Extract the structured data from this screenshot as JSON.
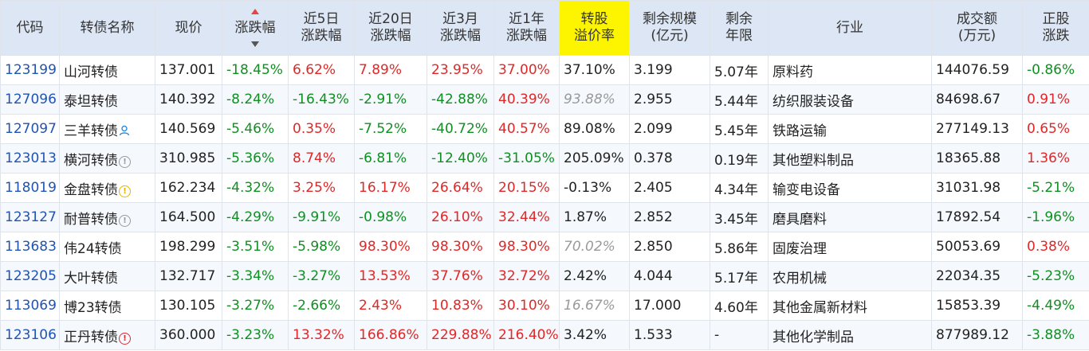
{
  "headers": [
    {
      "key": "code",
      "label": "代码"
    },
    {
      "key": "name",
      "label": "转债名称"
    },
    {
      "key": "price",
      "label": "现价"
    },
    {
      "key": "change",
      "label": "涨跌幅"
    },
    {
      "key": "change5d",
      "label": "近5日\n涨跌幅"
    },
    {
      "key": "change20d",
      "label": "近20日\n涨跌幅"
    },
    {
      "key": "change3m",
      "label": "近3月\n涨跌幅"
    },
    {
      "key": "change1y",
      "label": "近1年\n涨跌幅"
    },
    {
      "key": "premium",
      "label": "转股\n溢价率"
    },
    {
      "key": "scale",
      "label": "剩余规模\n(亿元)"
    },
    {
      "key": "years",
      "label": "剩余\n年限"
    },
    {
      "key": "industry",
      "label": "行业"
    },
    {
      "key": "turnover",
      "label": "成交额\n(万元)"
    },
    {
      "key": "stock_change",
      "label": "正股\n涨跌"
    }
  ],
  "sort": {
    "column": "change",
    "direction": "desc"
  },
  "colors": {
    "header_bg": "#dce6f4",
    "highlight": "#fdf400",
    "up": "#e12727",
    "down": "#108f22",
    "code": "#1f54b5",
    "muted": "#9a9a9a"
  },
  "rows": [
    {
      "code": "123199",
      "name": "山河转债",
      "badge": "",
      "price": "137.001",
      "change": "-18.45%",
      "change5d": "6.62%",
      "change20d": "7.89%",
      "change3m": "23.95%",
      "change1y": "37.00%",
      "premium": "37.10%",
      "premium_muted": false,
      "scale": "3.199",
      "years": "5.07年",
      "industry": "原料药",
      "turnover": "144076.59",
      "stock_change": "-0.86%"
    },
    {
      "code": "127096",
      "name": "泰坦转债",
      "badge": "",
      "price": "140.392",
      "change": "-8.24%",
      "change5d": "-16.43%",
      "change20d": "-2.91%",
      "change3m": "-42.88%",
      "change1y": "40.39%",
      "premium": "93.88%",
      "premium_muted": true,
      "scale": "2.955",
      "years": "5.44年",
      "industry": "纺织服装设备",
      "turnover": "84698.67",
      "stock_change": "0.91%"
    },
    {
      "code": "127097",
      "name": "三羊转债",
      "badge": "user-icon",
      "price": "140.569",
      "change": "-5.46%",
      "change5d": "0.35%",
      "change20d": "-7.52%",
      "change3m": "-40.72%",
      "change1y": "40.57%",
      "premium": "89.08%",
      "premium_muted": false,
      "scale": "2.099",
      "years": "5.45年",
      "industry": "铁路运输",
      "turnover": "277149.13",
      "stock_change": "0.65%"
    },
    {
      "code": "123013",
      "name": "横河转债",
      "badge": "info-icon",
      "price": "310.985",
      "change": "-5.36%",
      "change5d": "8.74%",
      "change20d": "-6.81%",
      "change3m": "-12.40%",
      "change1y": "-31.05%",
      "premium": "205.09%",
      "premium_muted": false,
      "scale": "0.378",
      "years": "0.19年",
      "industry": "其他塑料制品",
      "turnover": "18365.88",
      "stock_change": "1.36%"
    },
    {
      "code": "118019",
      "name": "金盘转债",
      "badge": "warning-icon",
      "price": "162.234",
      "change": "-4.32%",
      "change5d": "3.25%",
      "change20d": "16.17%",
      "change3m": "26.64%",
      "change1y": "20.15%",
      "premium": "-0.13%",
      "premium_muted": false,
      "scale": "2.405",
      "years": "4.34年",
      "industry": "输变电设备",
      "turnover": "31031.98",
      "stock_change": "-5.21%"
    },
    {
      "code": "123127",
      "name": "耐普转债",
      "badge": "info-icon",
      "price": "164.500",
      "change": "-4.29%",
      "change5d": "-9.91%",
      "change20d": "-0.98%",
      "change3m": "26.10%",
      "change1y": "32.44%",
      "premium": "1.87%",
      "premium_muted": false,
      "scale": "2.852",
      "years": "3.45年",
      "industry": "磨具磨料",
      "turnover": "17892.54",
      "stock_change": "-1.96%"
    },
    {
      "code": "113683",
      "name": "伟24转债",
      "badge": "",
      "price": "198.299",
      "change": "-3.51%",
      "change5d": "-5.98%",
      "change20d": "98.30%",
      "change3m": "98.30%",
      "change1y": "98.30%",
      "premium": "70.02%",
      "premium_muted": true,
      "scale": "2.850",
      "years": "5.86年",
      "industry": "固废治理",
      "turnover": "50053.69",
      "stock_change": "0.38%"
    },
    {
      "code": "123205",
      "name": "大叶转债",
      "badge": "",
      "price": "132.717",
      "change": "-3.34%",
      "change5d": "-3.27%",
      "change20d": "13.53%",
      "change3m": "37.76%",
      "change1y": "32.72%",
      "premium": "2.42%",
      "premium_muted": false,
      "scale": "4.044",
      "years": "5.17年",
      "industry": "农用机械",
      "turnover": "22034.35",
      "stock_change": "-5.23%"
    },
    {
      "code": "113069",
      "name": "博23转债",
      "badge": "",
      "price": "130.105",
      "change": "-3.27%",
      "change5d": "-2.66%",
      "change20d": "2.43%",
      "change3m": "10.83%",
      "change1y": "30.10%",
      "premium": "16.67%",
      "premium_muted": true,
      "scale": "17.000",
      "years": "4.60年",
      "industry": "其他金属新材料",
      "turnover": "15853.39",
      "stock_change": "-4.49%"
    },
    {
      "code": "123106",
      "name": "正丹转债",
      "badge": "risk-icon",
      "price": "360.000",
      "change": "-3.23%",
      "change5d": "13.32%",
      "change20d": "166.86%",
      "change3m": "229.88%",
      "change1y": "216.40%",
      "premium": "3.42%",
      "premium_muted": false,
      "scale": "1.533",
      "years": "-",
      "industry": "其他化学制品",
      "turnover": "877989.12",
      "stock_change": "-3.88%"
    }
  ]
}
